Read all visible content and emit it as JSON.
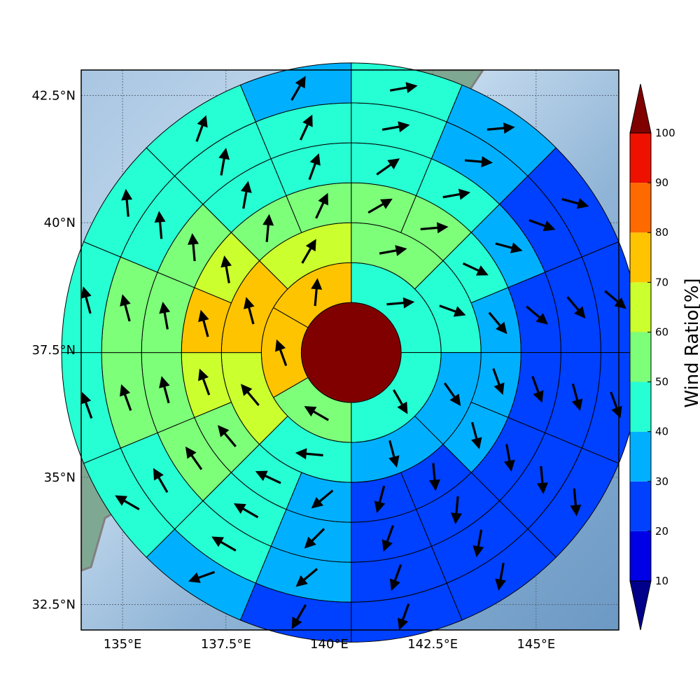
{
  "chart_data": {
    "type": "polar-sector-map",
    "title": "",
    "x_axis": {
      "ticks": [
        135,
        137.5,
        140,
        142.5,
        145
      ],
      "tick_labels": [
        "135°E",
        "137.5°E",
        "140°E",
        "142.5°E",
        "145°E"
      ],
      "range": [
        134.0,
        147.0
      ]
    },
    "y_axis": {
      "ticks": [
        32.5,
        35,
        37.5,
        40,
        42.5
      ],
      "tick_labels": [
        "32.5°N",
        "35°N",
        "37.5°N",
        "40°N",
        "42.5°N"
      ],
      "range": [
        32.0,
        43.0
      ]
    },
    "grid": true,
    "center": {
      "lon": 140.53,
      "lat": 37.45,
      "value": 100
    },
    "ring_radii": [
      1.0,
      1.8,
      2.6,
      3.4,
      4.2,
      5.0
    ],
    "sector_width_deg": 22.5,
    "colorbar": {
      "label": "Wind Ratio[%]",
      "tick_values": [
        10,
        20,
        30,
        40,
        50,
        60,
        70,
        80,
        90,
        100
      ],
      "tick_labels": [
        "10",
        "20",
        "30",
        "40",
        "50",
        "60",
        "70",
        "80",
        "90",
        "100"
      ],
      "bins": [
        {
          "range": [
            0,
            10
          ],
          "color": "#00008b"
        },
        {
          "range": [
            10,
            20
          ],
          "color": "#0000e6"
        },
        {
          "range": [
            20,
            30
          ],
          "color": "#0040ff"
        },
        {
          "range": [
            30,
            40
          ],
          "color": "#00b0ff"
        },
        {
          "range": [
            40,
            50
          ],
          "color": "#26ffd4"
        },
        {
          "range": [
            50,
            60
          ],
          "color": "#7dff7a"
        },
        {
          "range": [
            60,
            70
          ],
          "color": "#ccff2e"
        },
        {
          "range": [
            70,
            80
          ],
          "color": "#ffc400"
        },
        {
          "range": [
            80,
            90
          ],
          "color": "#ff6a00"
        },
        {
          "range": [
            90,
            100
          ],
          "color": "#ee1100"
        },
        {
          "range": [
            100,
            110
          ],
          "color": "#800000"
        }
      ],
      "extend": "both"
    },
    "rings": [
      {
        "ring": 1,
        "sectors": [
          {
            "az_start": 0,
            "az_end": 90,
            "value": 45,
            "arrow_dir": 85
          },
          {
            "az_start": 90,
            "az_end": 180,
            "value": 45,
            "arrow_dir": 150
          },
          {
            "az_start": 180,
            "az_end": 240,
            "value": 55,
            "arrow_dir": 300
          },
          {
            "az_start": 240,
            "az_end": 300,
            "value": 75,
            "arrow_dir": 340
          },
          {
            "az_start": 300,
            "az_end": 360,
            "value": 75,
            "arrow_dir": 5
          }
        ]
      },
      {
        "ring": 2,
        "sectors": [
          {
            "az_start": 0,
            "az_end": 45,
            "value": 55,
            "arrow_dir": 80
          },
          {
            "az_start": 45,
            "az_end": 90,
            "value": 45,
            "arrow_dir": 110
          },
          {
            "az_start": 90,
            "az_end": 135,
            "value": 35,
            "arrow_dir": 145
          },
          {
            "az_start": 135,
            "az_end": 180,
            "value": 35,
            "arrow_dir": 165
          },
          {
            "az_start": 180,
            "az_end": 225,
            "value": 45,
            "arrow_dir": 275
          },
          {
            "az_start": 225,
            "az_end": 270,
            "value": 65,
            "arrow_dir": 320
          },
          {
            "az_start": 270,
            "az_end": 315,
            "value": 75,
            "arrow_dir": 345
          },
          {
            "az_start": 315,
            "az_end": 360,
            "value": 65,
            "arrow_dir": 30
          }
        ]
      },
      {
        "ring": 3,
        "sectors": [
          {
            "az_start": 0,
            "az_end": 22.5,
            "value": 55,
            "arrow_dir": 60
          },
          {
            "az_start": 22.5,
            "az_end": 45,
            "value": 55,
            "arrow_dir": 85
          },
          {
            "az_start": 45,
            "az_end": 67.5,
            "value": 45,
            "arrow_dir": 115
          },
          {
            "az_start": 67.5,
            "az_end": 90,
            "value": 35,
            "arrow_dir": 140
          },
          {
            "az_start": 90,
            "az_end": 112.5,
            "value": 35,
            "arrow_dir": 160
          },
          {
            "az_start": 112.5,
            "az_end": 135,
            "value": 35,
            "arrow_dir": 165
          },
          {
            "az_start": 135,
            "az_end": 157.5,
            "value": 25,
            "arrow_dir": 175
          },
          {
            "az_start": 157.5,
            "az_end": 180,
            "value": 25,
            "arrow_dir": 195
          },
          {
            "az_start": 180,
            "az_end": 202.5,
            "value": 35,
            "arrow_dir": 230
          },
          {
            "az_start": 202.5,
            "az_end": 225,
            "value": 45,
            "arrow_dir": 295
          },
          {
            "az_start": 225,
            "az_end": 247.5,
            "value": 55,
            "arrow_dir": 320
          },
          {
            "az_start": 247.5,
            "az_end": 270,
            "value": 65,
            "arrow_dir": 340
          },
          {
            "az_start": 270,
            "az_end": 292.5,
            "value": 75,
            "arrow_dir": 345
          },
          {
            "az_start": 292.5,
            "az_end": 315,
            "value": 65,
            "arrow_dir": 350
          },
          {
            "az_start": 315,
            "az_end": 337.5,
            "value": 55,
            "arrow_dir": 5
          },
          {
            "az_start": 337.5,
            "az_end": 360,
            "value": 55,
            "arrow_dir": 25
          }
        ]
      },
      {
        "ring": 4,
        "sectors": [
          {
            "az_start": 0,
            "az_end": 22.5,
            "value": 45,
            "arrow_dir": 55
          },
          {
            "az_start": 22.5,
            "az_end": 45,
            "value": 45,
            "arrow_dir": 80
          },
          {
            "az_start": 45,
            "az_end": 67.5,
            "value": 35,
            "arrow_dir": 105
          },
          {
            "az_start": 67.5,
            "az_end": 90,
            "value": 25,
            "arrow_dir": 130
          },
          {
            "az_start": 90,
            "az_end": 112.5,
            "value": 25,
            "arrow_dir": 160
          },
          {
            "az_start": 112.5,
            "az_end": 135,
            "value": 25,
            "arrow_dir": 170
          },
          {
            "az_start": 135,
            "az_end": 157.5,
            "value": 25,
            "arrow_dir": 185
          },
          {
            "az_start": 157.5,
            "az_end": 180,
            "value": 25,
            "arrow_dir": 200
          },
          {
            "az_start": 180,
            "az_end": 202.5,
            "value": 35,
            "arrow_dir": 225
          },
          {
            "az_start": 202.5,
            "az_end": 225,
            "value": 45,
            "arrow_dir": 300
          },
          {
            "az_start": 225,
            "az_end": 247.5,
            "value": 55,
            "arrow_dir": 325
          },
          {
            "az_start": 247.5,
            "az_end": 270,
            "value": 55,
            "arrow_dir": 345
          },
          {
            "az_start": 270,
            "az_end": 292.5,
            "value": 55,
            "arrow_dir": 350
          },
          {
            "az_start": 292.5,
            "az_end": 315,
            "value": 55,
            "arrow_dir": 355
          },
          {
            "az_start": 315,
            "az_end": 337.5,
            "value": 45,
            "arrow_dir": 10
          },
          {
            "az_start": 337.5,
            "az_end": 360,
            "value": 45,
            "arrow_dir": 20
          }
        ]
      },
      {
        "ring": 5,
        "sectors": [
          {
            "az_start": 0,
            "az_end": 22.5,
            "value": 45,
            "arrow_dir": 80
          },
          {
            "az_start": 22.5,
            "az_end": 45,
            "value": 35,
            "arrow_dir": 95
          },
          {
            "az_start": 45,
            "az_end": 67.5,
            "value": 25,
            "arrow_dir": 110
          },
          {
            "az_start": 67.5,
            "az_end": 90,
            "value": 25,
            "arrow_dir": 140
          },
          {
            "az_start": 90,
            "az_end": 112.5,
            "value": 25,
            "arrow_dir": 165
          },
          {
            "az_start": 112.5,
            "az_end": 135,
            "value": 25,
            "arrow_dir": 175
          },
          {
            "az_start": 135,
            "az_end": 157.5,
            "value": 25,
            "arrow_dir": 190
          },
          {
            "az_start": 157.5,
            "az_end": 180,
            "value": 25,
            "arrow_dir": 200
          },
          {
            "az_start": 180,
            "az_end": 202.5,
            "value": 35,
            "arrow_dir": 230
          },
          {
            "az_start": 202.5,
            "az_end": 225,
            "value": 45,
            "arrow_dir": 300
          },
          {
            "az_start": 225,
            "az_end": 247.5,
            "value": 45,
            "arrow_dir": 330
          },
          {
            "az_start": 247.5,
            "az_end": 270,
            "value": 55,
            "arrow_dir": 340
          },
          {
            "az_start": 270,
            "az_end": 292.5,
            "value": 55,
            "arrow_dir": 345
          },
          {
            "az_start": 292.5,
            "az_end": 315,
            "value": 45,
            "arrow_dir": 355
          },
          {
            "az_start": 315,
            "az_end": 337.5,
            "value": 45,
            "arrow_dir": 10
          },
          {
            "az_start": 337.5,
            "az_end": 360,
            "value": 45,
            "arrow_dir": 25
          }
        ]
      },
      {
        "ring": 6,
        "sectors": [
          {
            "az_start": 0,
            "az_end": 22.5,
            "value": 45,
            "arrow_dir": 80
          },
          {
            "az_start": 22.5,
            "az_end": 45,
            "value": 35,
            "arrow_dir": 85
          },
          {
            "az_start": 45,
            "az_end": 67.5,
            "value": 25,
            "arrow_dir": 105
          },
          {
            "az_start": 67.5,
            "az_end": 90,
            "value": 25,
            "arrow_dir": 130
          },
          {
            "az_start": 90,
            "az_end": 112.5,
            "value": 25,
            "arrow_dir": 160
          },
          {
            "az_start": 112.5,
            "az_end": 135,
            "value": 25,
            "arrow_dir": 175
          },
          {
            "az_start": 135,
            "az_end": 157.5,
            "value": 25,
            "arrow_dir": 190
          },
          {
            "az_start": 157.5,
            "az_end": 180,
            "value": 25,
            "arrow_dir": 200
          },
          {
            "az_start": 180,
            "az_end": 202.5,
            "value": 25,
            "arrow_dir": 210
          },
          {
            "az_start": 202.5,
            "az_end": 225,
            "value": 35,
            "arrow_dir": 250
          },
          {
            "az_start": 225,
            "az_end": 247.5,
            "value": 45,
            "arrow_dir": 300
          },
          {
            "az_start": 247.5,
            "az_end": 270,
            "value": 45,
            "arrow_dir": 340
          },
          {
            "az_start": 270,
            "az_end": 292.5,
            "value": 45,
            "arrow_dir": 345
          },
          {
            "az_start": 292.5,
            "az_end": 315,
            "value": 45,
            "arrow_dir": 355
          },
          {
            "az_start": 315,
            "az_end": 337.5,
            "value": 45,
            "arrow_dir": 20
          },
          {
            "az_start": 337.5,
            "az_end": 360,
            "value": 35,
            "arrow_dir": 30
          }
        ]
      }
    ]
  }
}
